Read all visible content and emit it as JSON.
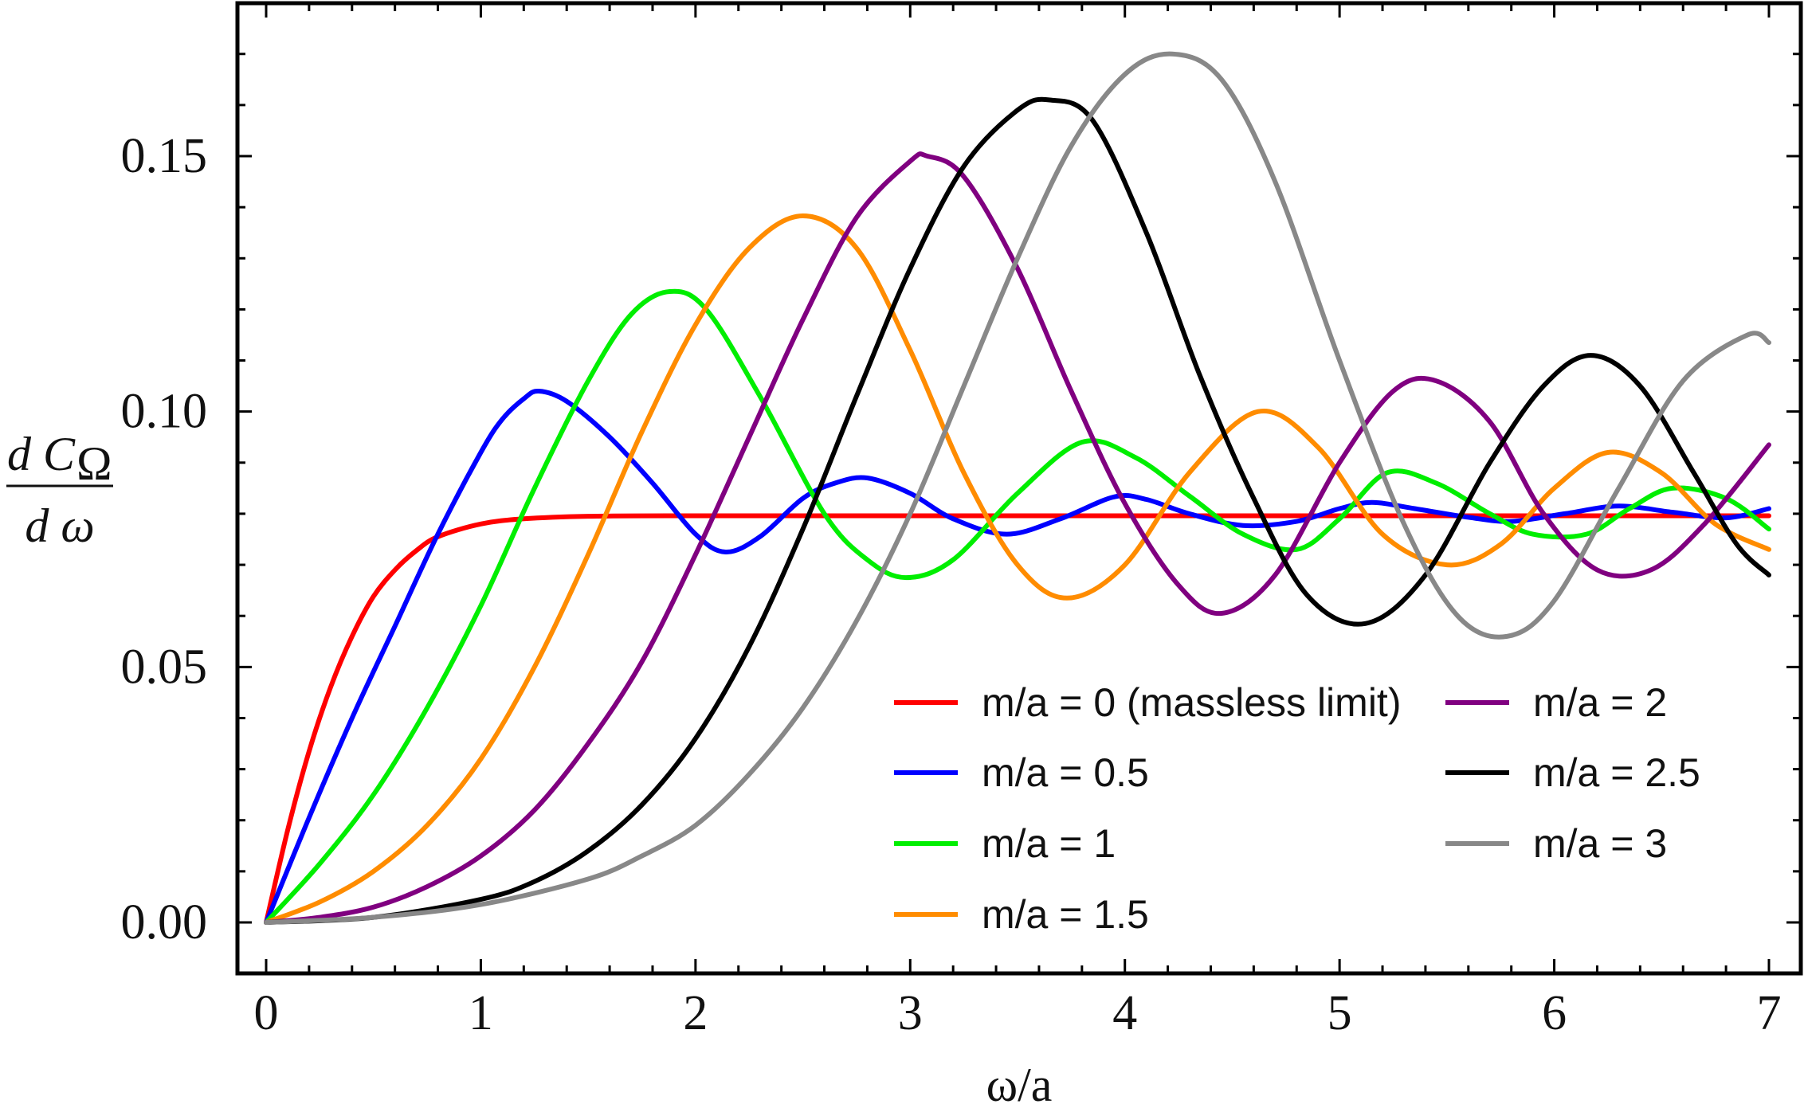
{
  "chart_data": {
    "type": "line",
    "title": "",
    "xlabel": "ω/a",
    "ylabel": {
      "numerator_prefix": "d C",
      "numerator_subscript": "Ω",
      "denominator": "d ω"
    },
    "xlim": [
      0,
      7
    ],
    "ylim": [
      -0.01,
      0.18
    ],
    "xticks": [
      0,
      1,
      2,
      3,
      4,
      5,
      6,
      7
    ],
    "xtick_labels": [
      "0",
      "1",
      "2",
      "3",
      "4",
      "5",
      "6",
      "7"
    ],
    "yticks": [
      0.0,
      0.05,
      0.1,
      0.15
    ],
    "ytick_labels": [
      "0.00",
      "0.05",
      "0.10",
      "0.15"
    ],
    "grid": false,
    "legend_position": "lower-right",
    "series": [
      {
        "name": "m/a = 0 (massless limit)",
        "color": "#ff0000",
        "x": [
          0,
          0.1,
          0.2,
          0.3,
          0.4,
          0.5,
          0.6,
          0.7,
          0.8,
          1.0,
          1.2,
          1.5,
          2,
          3,
          4,
          5,
          6,
          7
        ],
        "y": [
          0,
          0.018,
          0.0335,
          0.046,
          0.056,
          0.0638,
          0.069,
          0.0728,
          0.0755,
          0.078,
          0.079,
          0.0795,
          0.0796,
          0.0796,
          0.0796,
          0.0796,
          0.0796,
          0.0796
        ]
      },
      {
        "name": "m/a = 0.5",
        "color": "#0000ff",
        "x": [
          0,
          0.2,
          0.4,
          0.6,
          0.8,
          1.0,
          1.1,
          1.2,
          1.27,
          1.4,
          1.6,
          1.8,
          2.0,
          2.14,
          2.3,
          2.5,
          2.65,
          2.8,
          3.0,
          3.2,
          3.45,
          3.7,
          3.95,
          4.1,
          4.3,
          4.55,
          4.8,
          5.0,
          5.15,
          5.35,
          5.6,
          5.8,
          6.05,
          6.3,
          6.55,
          6.8,
          7.0
        ],
        "y": [
          0,
          0.0205,
          0.04,
          0.058,
          0.076,
          0.092,
          0.0985,
          0.1025,
          0.104,
          0.102,
          0.095,
          0.086,
          0.076,
          0.0725,
          0.0755,
          0.083,
          0.086,
          0.087,
          0.084,
          0.079,
          0.076,
          0.079,
          0.0833,
          0.0828,
          0.08,
          0.0777,
          0.0785,
          0.081,
          0.0822,
          0.081,
          0.0793,
          0.0785,
          0.08,
          0.0815,
          0.0803,
          0.0792,
          0.081
        ]
      },
      {
        "name": "m/a = 1",
        "color": "#00ee00",
        "x": [
          0,
          0.25,
          0.5,
          0.75,
          1.0,
          1.25,
          1.5,
          1.7,
          1.88,
          2.05,
          2.3,
          2.6,
          2.8,
          2.98,
          3.2,
          3.5,
          3.8,
          4.05,
          4.3,
          4.55,
          4.8,
          5.0,
          5.22,
          5.45,
          5.7,
          5.9,
          6.15,
          6.35,
          6.55,
          6.8,
          7.0
        ],
        "y": [
          0,
          0.0115,
          0.025,
          0.042,
          0.062,
          0.085,
          0.106,
          0.119,
          0.1235,
          0.12,
          0.103,
          0.08,
          0.071,
          0.0675,
          0.071,
          0.084,
          0.094,
          0.091,
          0.0835,
          0.076,
          0.073,
          0.079,
          0.088,
          0.086,
          0.08,
          0.076,
          0.076,
          0.081,
          0.085,
          0.083,
          0.077
        ]
      },
      {
        "name": "m/a = 1.5",
        "color": "#ff8c00",
        "x": [
          0,
          0.25,
          0.5,
          0.75,
          1.0,
          1.25,
          1.5,
          1.75,
          2.0,
          2.25,
          2.5,
          2.75,
          3.0,
          3.25,
          3.5,
          3.73,
          4.0,
          4.3,
          4.62,
          4.9,
          5.2,
          5.5,
          5.75,
          6.0,
          6.25,
          6.5,
          6.75,
          7.0
        ],
        "y": [
          0,
          0.004,
          0.01,
          0.019,
          0.032,
          0.05,
          0.072,
          0.096,
          0.117,
          0.132,
          0.1383,
          0.132,
          0.112,
          0.088,
          0.07,
          0.0635,
          0.07,
          0.088,
          0.1,
          0.093,
          0.076,
          0.07,
          0.074,
          0.085,
          0.092,
          0.088,
          0.078,
          0.073
        ]
      },
      {
        "name": "m/a = 2",
        "color": "#800080",
        "x": [
          0,
          0.25,
          0.5,
          0.75,
          1.0,
          1.25,
          1.5,
          1.75,
          2.0,
          2.25,
          2.5,
          2.75,
          3.0,
          3.08,
          3.25,
          3.5,
          3.75,
          4.0,
          4.25,
          4.45,
          4.7,
          5.0,
          5.25,
          5.45,
          5.7,
          5.95,
          6.2,
          6.45,
          6.7,
          7.0
        ],
        "y": [
          0,
          0.001,
          0.003,
          0.007,
          0.013,
          0.022,
          0.035,
          0.051,
          0.072,
          0.095,
          0.118,
          0.138,
          0.149,
          0.15,
          0.146,
          0.128,
          0.104,
          0.082,
          0.066,
          0.0605,
          0.068,
          0.09,
          0.104,
          0.106,
          0.098,
          0.08,
          0.069,
          0.069,
          0.078,
          0.0935
        ]
      },
      {
        "name": "m/a = 2.5",
        "color": "#000000",
        "x": [
          0,
          0.5,
          1.0,
          1.25,
          1.5,
          1.75,
          2.0,
          2.25,
          2.5,
          2.75,
          3.0,
          3.25,
          3.5,
          3.65,
          3.85,
          4.1,
          4.35,
          4.6,
          4.85,
          5.12,
          5.4,
          5.7,
          5.95,
          6.17,
          6.4,
          6.65,
          6.85,
          7.0
        ],
        "y": [
          0,
          0.001,
          0.0045,
          0.008,
          0.014,
          0.023,
          0.036,
          0.054,
          0.077,
          0.103,
          0.128,
          0.148,
          0.159,
          0.161,
          0.157,
          0.135,
          0.107,
          0.083,
          0.064,
          0.0585,
          0.068,
          0.09,
          0.105,
          0.111,
          0.105,
          0.088,
          0.074,
          0.068
        ]
      },
      {
        "name": "m/a = 3",
        "color": "#888888",
        "x": [
          0,
          0.5,
          1.0,
          1.5,
          1.75,
          2.0,
          2.25,
          2.5,
          2.75,
          3.0,
          3.25,
          3.5,
          3.75,
          4.0,
          4.22,
          4.45,
          4.7,
          5.0,
          5.3,
          5.55,
          5.78,
          6.0,
          6.3,
          6.6,
          6.9,
          7.0
        ],
        "y": [
          0,
          0.001,
          0.0035,
          0.0085,
          0.013,
          0.019,
          0.029,
          0.042,
          0.059,
          0.08,
          0.105,
          0.13,
          0.152,
          0.166,
          0.17,
          0.165,
          0.145,
          0.11,
          0.078,
          0.06,
          0.056,
          0.063,
          0.085,
          0.106,
          0.115,
          0.1135
        ]
      }
    ]
  }
}
